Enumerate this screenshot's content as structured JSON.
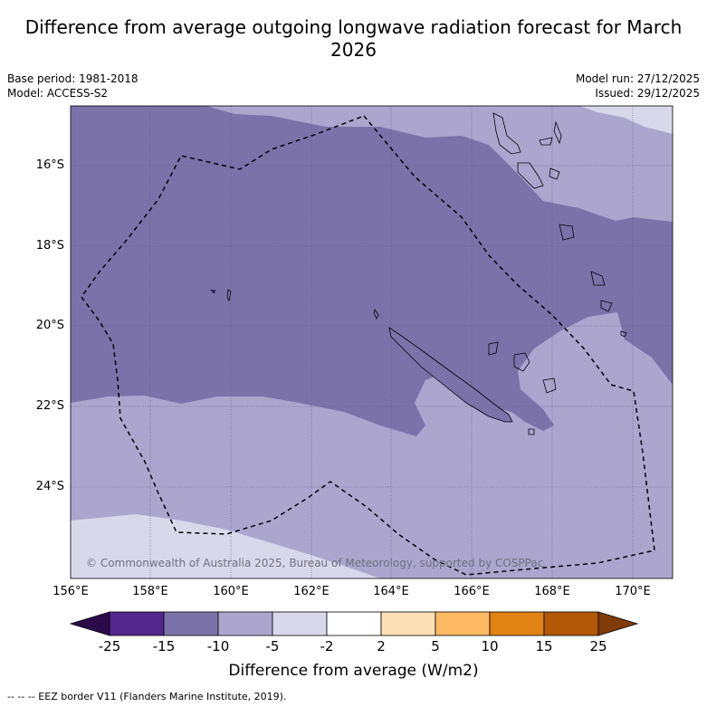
{
  "title": "Difference from average outgoing longwave radiation forecast for March 2026",
  "base_period": "Base period: 1981-2018",
  "model": "Model: ACCESS-S2",
  "model_run": "Model run: 27/12/2025",
  "issued": "Issued: 29/12/2025",
  "copyright": "© Commonwealth of Australia 2025, Bureau of Meteorology, supported by COSPPac",
  "lat_labels": [
    "16°S",
    "18°S",
    "20°S",
    "22°S",
    "24°S"
  ],
  "lon_labels": [
    "156°E",
    "158°E",
    "160°E",
    "162°E",
    "164°E",
    "166°E",
    "168°E",
    "170°E"
  ],
  "colorbar": {
    "ticks": [
      "-25",
      "-15",
      "-10",
      "-5",
      "-2",
      "2",
      "5",
      "10",
      "15",
      "25"
    ],
    "colors": [
      "#2c0a4a",
      "#54278f",
      "#7c72aa",
      "#aca6cf",
      "#d9d8eb",
      "#ffffff",
      "#fee0b6",
      "#fdb863",
      "#e08214",
      "#b35806",
      "#7f3b08"
    ],
    "title": "Difference from average (W/m2)"
  },
  "footnote": "--  --  -- EEZ border V11 (Flanders Marine Institute, 2019)."
}
